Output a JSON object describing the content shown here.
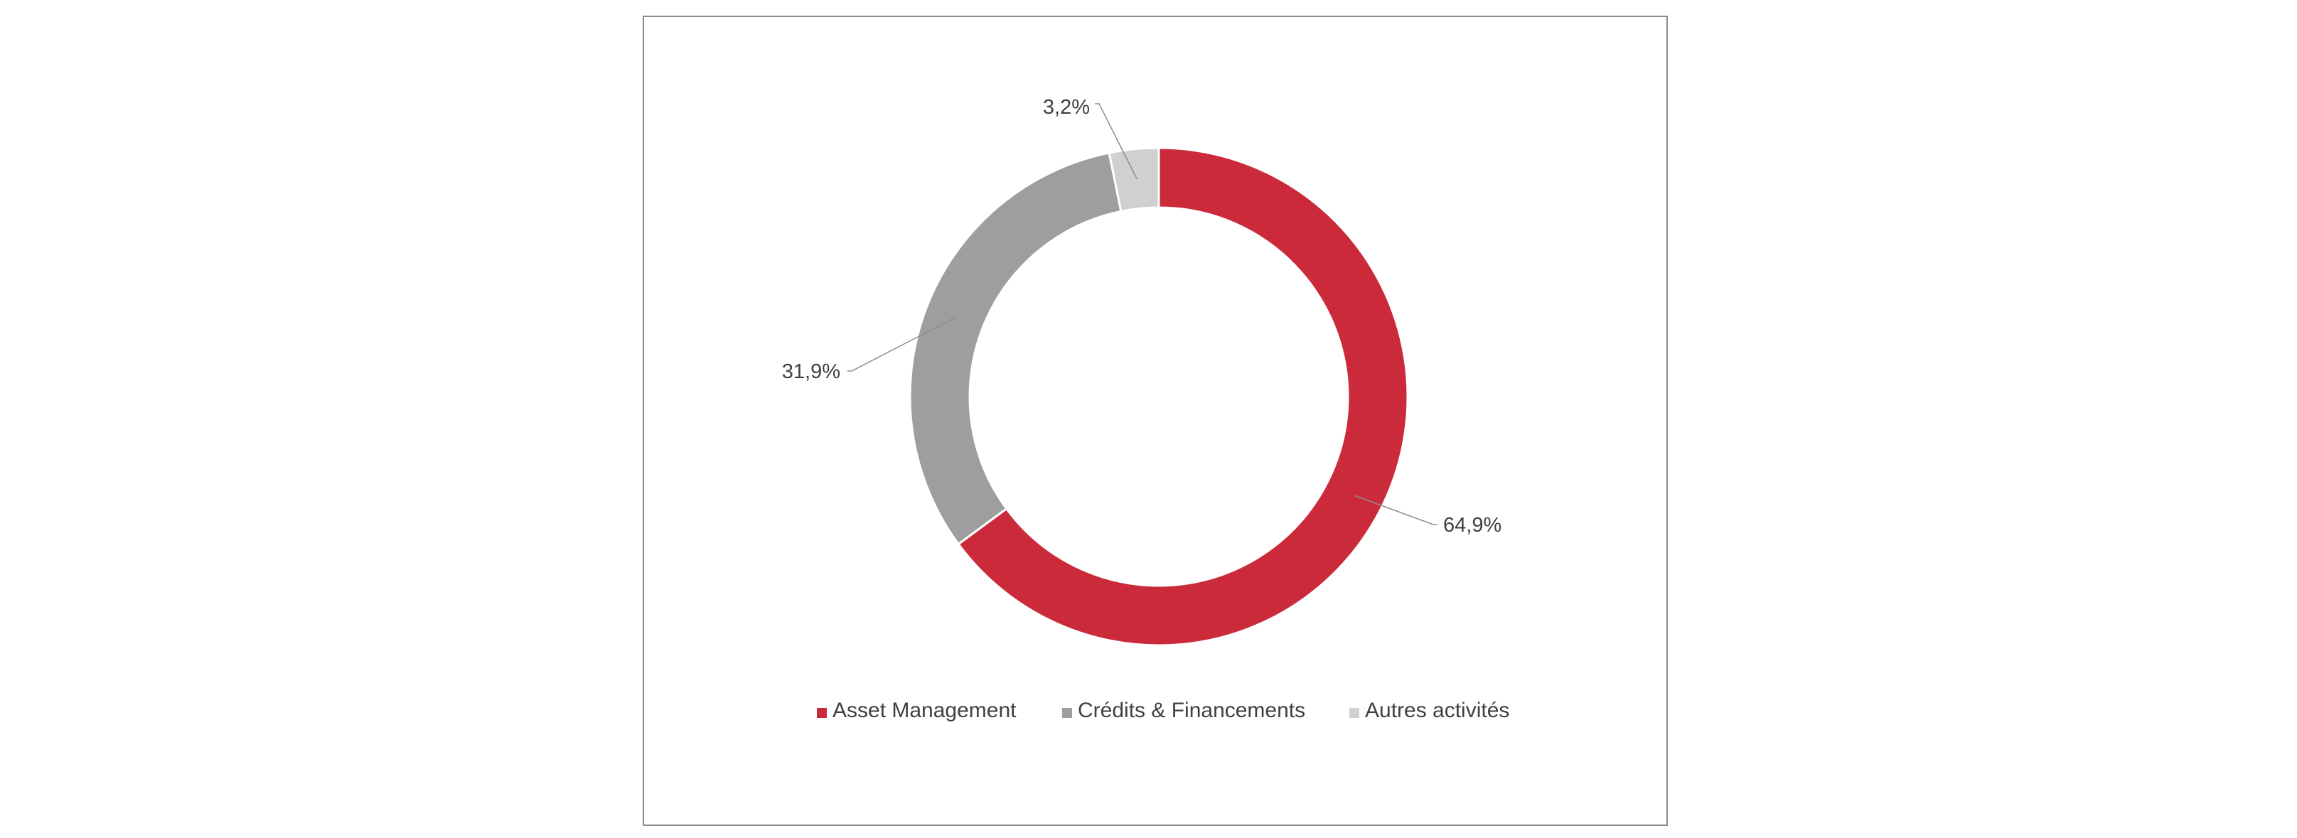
{
  "chart_data": {
    "type": "pie",
    "variant": "donut",
    "title": "",
    "categories": [
      "Asset Management",
      "Crédits & Financements",
      "Autres activités"
    ],
    "values": [
      64.9,
      31.9,
      3.2
    ],
    "value_labels": [
      "64,9%",
      "31,9%",
      "3,2%"
    ],
    "colors": [
      "#cb2a3a",
      "#9e9e9e",
      "#d0d0d0"
    ],
    "legend": {
      "position": "bottom",
      "entries": [
        "Asset Management",
        "Crédits & Financements",
        "Autres activités"
      ]
    },
    "start_angle": "top",
    "direction": "clockwise",
    "grid": false
  }
}
